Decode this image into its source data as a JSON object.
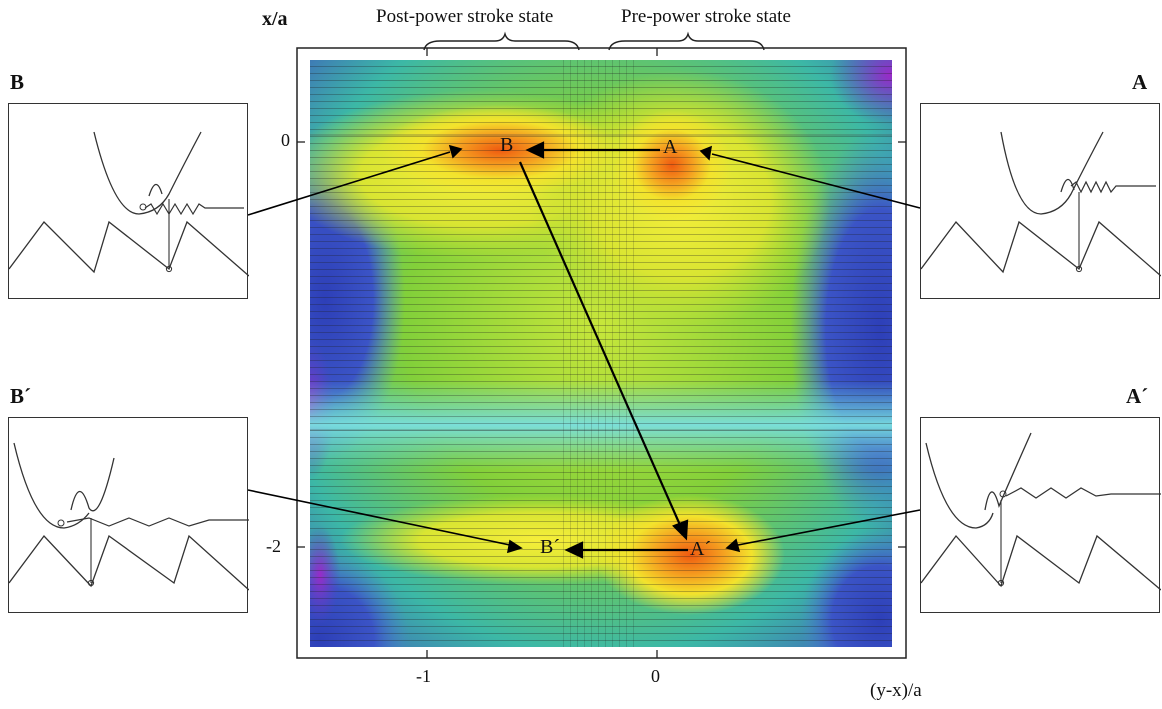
{
  "axes": {
    "y_title": "x/a",
    "x_title": "(y-x)/a",
    "y_ticks": [
      "0",
      "-2"
    ],
    "x_ticks": [
      "-1",
      "0"
    ]
  },
  "braces": {
    "post": "Post-power stroke state",
    "pre": "Pre-power stroke state"
  },
  "map_points": {
    "A": "A",
    "B": "B",
    "A_prime": "A´",
    "B_prime": "B´"
  },
  "panels": {
    "B": "B",
    "A": "A",
    "B_prime": "B´",
    "A_prime": "A´"
  },
  "colors": {
    "hot": "#ee5a0c",
    "yellow": "#f2e62a",
    "green": "#7ccf2e",
    "cyan": "#48c9c6",
    "blue": "#3a4ec2",
    "purple": "#8d2ec6"
  }
}
